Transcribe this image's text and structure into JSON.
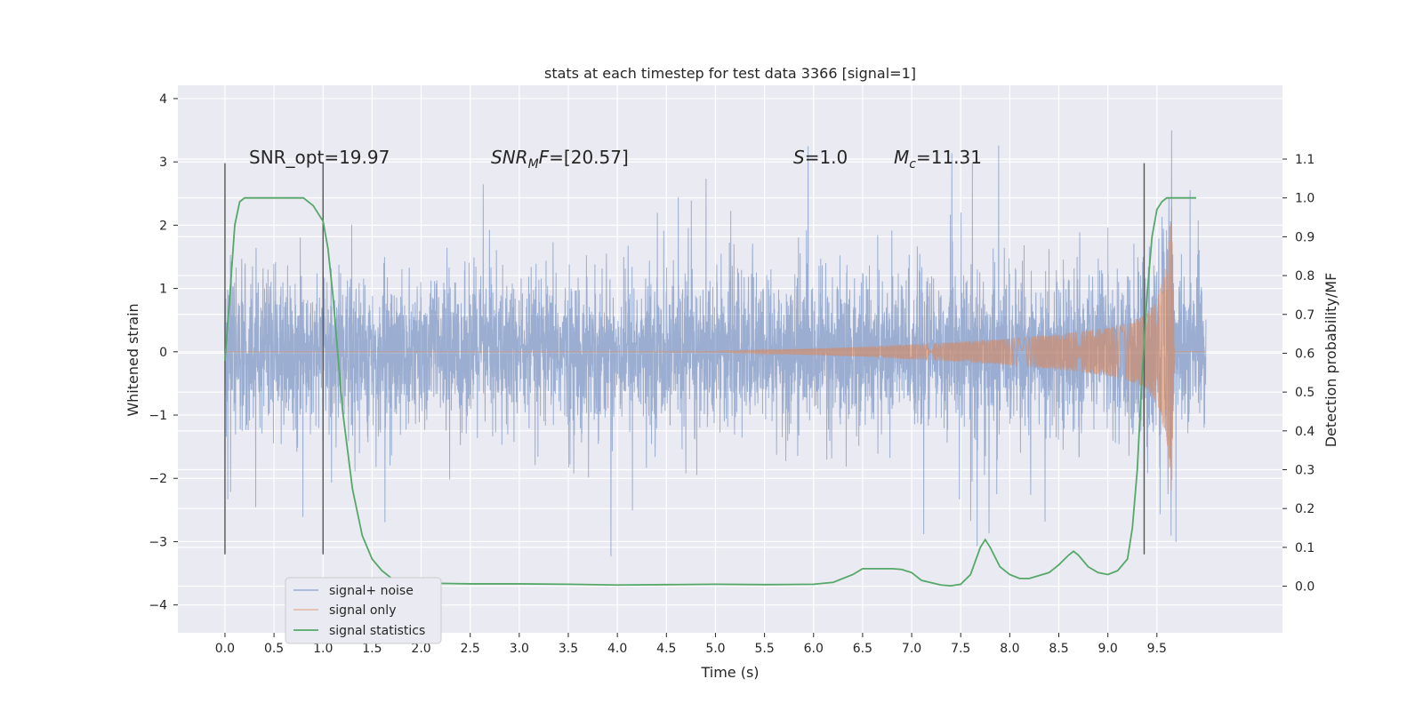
{
  "chart_data": {
    "type": "line",
    "title": "stats at each timestep for test data 3366 [signal=1]",
    "xlabel": "Time (s)",
    "ylabel": "Whitened strain",
    "y2label": "Detection probability/MF",
    "xlim": [
      -0.48,
      10.78
    ],
    "ylim": [
      -4.44,
      4.21
    ],
    "y2lim": [
      -0.12,
      1.29
    ],
    "x_ticks": [
      "0.0",
      "0.5",
      "1.0",
      "1.5",
      "2.0",
      "2.5",
      "3.0",
      "3.5",
      "4.0",
      "4.5",
      "5.0",
      "5.5",
      "6.0",
      "6.5",
      "7.0",
      "7.5",
      "8.0",
      "8.5",
      "9.0",
      "9.5"
    ],
    "y_ticks": [
      "−4",
      "−3",
      "−2",
      "−1",
      "0",
      "1",
      "2",
      "3",
      "4"
    ],
    "y2_ticks": [
      "0.0",
      "0.1",
      "0.2",
      "0.3",
      "0.4",
      "0.5",
      "0.6",
      "0.7",
      "0.8",
      "0.9",
      "1.0",
      "1.1"
    ],
    "grid": true,
    "legend_position": "lower-left",
    "annotations": {
      "snr_opt": "SNR_opt=19.97",
      "snr_mf": "SNR_MF=[20.57]",
      "stat_s": "S=1.0",
      "mc": "M_c=11.31"
    },
    "vlines_x": [
      0.0,
      1.0,
      9.37
    ],
    "noise_envelope": {
      "x": [
        0.0,
        0.5,
        1.0,
        1.5,
        2.0,
        2.5,
        3.0,
        3.5,
        4.0,
        4.5,
        5.0,
        5.5,
        6.0,
        6.5,
        7.0,
        7.5,
        8.0,
        8.5,
        9.0,
        9.5,
        10.0
      ],
      "spread": [
        1.9,
        1.9,
        1.9,
        1.9,
        1.9,
        1.9,
        1.9,
        1.9,
        1.9,
        1.9,
        1.9,
        1.9,
        1.9,
        1.9,
        1.9,
        1.9,
        1.9,
        1.9,
        1.9,
        1.9,
        1.9
      ]
    },
    "chirp_envelope": {
      "x": [
        0.0,
        5.0,
        5.5,
        6.0,
        6.5,
        7.0,
        7.5,
        8.0,
        8.5,
        9.0,
        9.2,
        9.4,
        9.5,
        9.6,
        9.65,
        9.68
      ],
      "amp": [
        0.0,
        0.01,
        0.03,
        0.05,
        0.08,
        0.12,
        0.16,
        0.21,
        0.28,
        0.38,
        0.45,
        0.6,
        0.8,
        1.4,
        2.35,
        0.0
      ]
    },
    "series": [
      {
        "name": "signal+ noise",
        "color": "#4c72b0"
      },
      {
        "name": "signal only",
        "color": "#dd8452"
      },
      {
        "name": "signal statistics",
        "color": "#55a868",
        "axis": "right",
        "x": [
          0.0,
          0.05,
          0.1,
          0.15,
          0.2,
          0.3,
          0.4,
          0.5,
          0.6,
          0.7,
          0.8,
          0.9,
          0.95,
          1.0,
          1.05,
          1.1,
          1.15,
          1.2,
          1.3,
          1.4,
          1.5,
          1.6,
          1.7,
          1.8,
          2.0,
          2.5,
          3.0,
          3.5,
          4.0,
          4.5,
          5.0,
          5.5,
          6.0,
          6.2,
          6.4,
          6.5,
          6.6,
          6.8,
          6.9,
          7.0,
          7.1,
          7.3,
          7.4,
          7.5,
          7.6,
          7.7,
          7.75,
          7.8,
          7.9,
          8.0,
          8.1,
          8.2,
          8.4,
          8.5,
          8.6,
          8.65,
          8.7,
          8.8,
          8.9,
          9.0,
          9.1,
          9.2,
          9.25,
          9.3,
          9.35,
          9.4,
          9.45,
          9.5,
          9.55,
          9.6,
          9.7,
          9.8,
          9.9
        ],
        "y": [
          0.58,
          0.75,
          0.93,
          0.99,
          1.0,
          1.0,
          1.0,
          1.0,
          1.0,
          1.0,
          1.0,
          0.98,
          0.96,
          0.94,
          0.87,
          0.75,
          0.6,
          0.45,
          0.25,
          0.13,
          0.07,
          0.04,
          0.02,
          0.01,
          0.008,
          0.006,
          0.006,
          0.005,
          0.003,
          0.004,
          0.005,
          0.004,
          0.005,
          0.01,
          0.03,
          0.045,
          0.045,
          0.045,
          0.043,
          0.035,
          0.015,
          0.003,
          0.001,
          0.005,
          0.03,
          0.1,
          0.12,
          0.1,
          0.05,
          0.03,
          0.02,
          0.02,
          0.035,
          0.055,
          0.08,
          0.09,
          0.08,
          0.05,
          0.035,
          0.03,
          0.04,
          0.07,
          0.15,
          0.3,
          0.55,
          0.75,
          0.9,
          0.97,
          0.99,
          1.0,
          1.0,
          1.0,
          1.0
        ]
      }
    ]
  }
}
